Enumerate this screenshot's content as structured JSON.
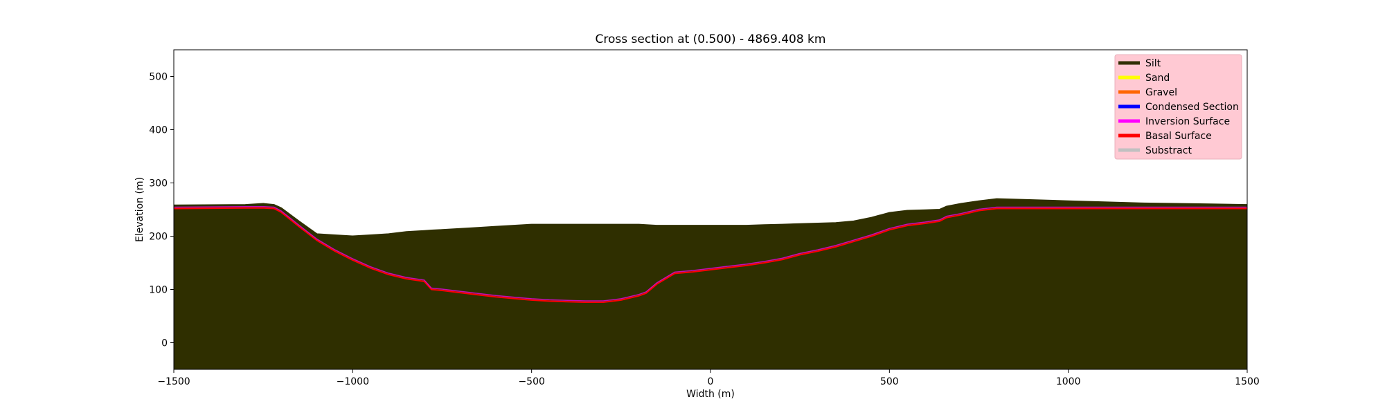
{
  "chart_data": {
    "type": "area",
    "title": "Cross section at (0.500) - 4869.408 km",
    "xlabel": "Width (m)",
    "ylabel": "Elevation (m)",
    "xlim": [
      -1500,
      1500
    ],
    "ylim": [
      -50,
      550
    ],
    "x_ticks": [
      -1500,
      -1000,
      -500,
      0,
      500,
      1000,
      1500
    ],
    "x_tick_labels": [
      "−1500",
      "−1000",
      "−500",
      "0",
      "500",
      "1000",
      "1500"
    ],
    "y_ticks": [
      0,
      100,
      200,
      300,
      400,
      500
    ],
    "y_tick_labels": [
      "0",
      "100",
      "200",
      "300",
      "400",
      "500"
    ],
    "grid": false,
    "legend_position": "top-right",
    "legend_background": "#ffc9d3",
    "legend": [
      {
        "name": "Silt",
        "color": "#2f2f00"
      },
      {
        "name": "Sand",
        "color": "#ffff00"
      },
      {
        "name": "Gravel",
        "color": "#ff6600"
      },
      {
        "name": "Condensed Section",
        "color": "#0000ff"
      },
      {
        "name": "Inversion Surface",
        "color": "#ff00ff"
      },
      {
        "name": "Basal Surface",
        "color": "#ff0000"
      },
      {
        "name": "Substract",
        "color": "#c0c0c0"
      }
    ],
    "x": [
      -1500,
      -1300,
      -1250,
      -1220,
      -1200,
      -1150,
      -1100,
      -1050,
      -1000,
      -950,
      -900,
      -850,
      -800,
      -780,
      -750,
      -700,
      -650,
      -600,
      -550,
      -500,
      -450,
      -400,
      -350,
      -300,
      -250,
      -200,
      -180,
      -150,
      -100,
      -50,
      0,
      50,
      100,
      150,
      200,
      250,
      300,
      350,
      400,
      450,
      500,
      550,
      600,
      640,
      660,
      700,
      750,
      800,
      850,
      900,
      1000,
      1100,
      1200,
      1300,
      1400,
      1500
    ],
    "series": [
      {
        "name": "Substract",
        "color": "#c0c0c0",
        "values": [
          252,
          253,
          253,
          252,
          245,
          218,
          192,
          172,
          155,
          140,
          128,
          120,
          115,
          100,
          98,
          94,
          90,
          86,
          83,
          80,
          78,
          77,
          76,
          76,
          80,
          88,
          93,
          110,
          130,
          133,
          137,
          141,
          145,
          150,
          156,
          165,
          172,
          180,
          190,
          200,
          212,
          220,
          224,
          228,
          235,
          240,
          248,
          252,
          252,
          252,
          252,
          252,
          252,
          252,
          252,
          252
        ]
      },
      {
        "name": "Gravel",
        "color": "#ff6600",
        "values": [
          252,
          253,
          253,
          252,
          245,
          218,
          192,
          172,
          155,
          140,
          128,
          120,
          115,
          102,
          100,
          96,
          92,
          89,
          86,
          83,
          82,
          82,
          82,
          82,
          85,
          92,
          97,
          115,
          133,
          137,
          141,
          144,
          147,
          152,
          158,
          167,
          174,
          182,
          192,
          202,
          214,
          222,
          226,
          230,
          237,
          242,
          250,
          253,
          253,
          253,
          253,
          253,
          253,
          253,
          253,
          253
        ]
      },
      {
        "name": "Sand",
        "color": "#ffff00",
        "values": [
          253,
          254,
          254,
          253,
          246,
          219,
          193,
          173,
          156,
          141,
          130,
          122,
          117,
          106,
          104,
          100,
          96,
          93,
          91,
          88,
          87,
          87,
          87,
          87,
          90,
          97,
          102,
          120,
          140,
          142,
          144,
          147,
          150,
          155,
          161,
          170,
          177,
          186,
          196,
          206,
          218,
          225,
          229,
          233,
          240,
          245,
          252,
          256,
          256,
          255,
          255,
          254,
          254,
          254,
          254,
          254
        ]
      },
      {
        "name": "Silt",
        "color": "#2f2f00",
        "values": [
          256,
          257,
          257,
          255,
          248,
          222,
          196,
          176,
          160,
          146,
          136,
          128,
          122,
          112,
          110,
          108,
          105,
          103,
          101,
          99,
          98,
          98,
          97,
          96,
          100,
          106,
          112,
          130,
          146,
          148,
          148,
          150,
          153,
          158,
          164,
          174,
          181,
          190,
          200,
          210,
          222,
          229,
          232,
          236,
          243,
          249,
          257,
          261,
          260,
          258,
          257,
          257,
          256,
          256,
          256,
          256
        ]
      },
      {
        "name": "Gravel",
        "color": "#ff6600",
        "values": [
          256,
          257,
          257,
          255,
          248,
          222,
          196,
          176,
          160,
          148,
          140,
          134,
          130,
          122,
          120,
          118,
          116,
          115,
          114,
          114,
          115,
          116,
          118,
          120,
          122,
          126,
          130,
          142,
          154,
          156,
          156,
          158,
          160,
          164,
          170,
          180,
          186,
          195,
          204,
          214,
          225,
          232,
          235,
          239,
          246,
          251,
          258,
          262,
          261,
          259,
          258,
          258,
          257,
          257,
          257,
          256
        ]
      },
      {
        "name": "Sand",
        "color": "#ffff00",
        "values": [
          256,
          257,
          257,
          255,
          248,
          222,
          196,
          176,
          162,
          152,
          145,
          140,
          137,
          132,
          131,
          130,
          130,
          130,
          131,
          132,
          136,
          140,
          144,
          146,
          148,
          150,
          152,
          156,
          160,
          161,
          160,
          160,
          161,
          164,
          170,
          180,
          186,
          195,
          204,
          214,
          225,
          232,
          235,
          239,
          246,
          251,
          258,
          262,
          261,
          259,
          258,
          258,
          257,
          257,
          257,
          256
        ]
      },
      {
        "name": "Silt",
        "color": "#2f2f00",
        "values": [
          258,
          259,
          260,
          258,
          252,
          226,
          200,
          180,
          168,
          158,
          152,
          148,
          148,
          146,
          146,
          148,
          150,
          152,
          155,
          158,
          163,
          168,
          172,
          176,
          178,
          178,
          178,
          170,
          168,
          167,
          166,
          166,
          168,
          172,
          178,
          186,
          192,
          200,
          208,
          218,
          229,
          236,
          239,
          243,
          250,
          255,
          262,
          266,
          265,
          263,
          262,
          261,
          260,
          259,
          258,
          258
        ]
      },
      {
        "name": "Gravel",
        "color": "#ff6600",
        "values": [
          258,
          259,
          260,
          258,
          252,
          226,
          200,
          184,
          175,
          168,
          164,
          163,
          163,
          163,
          164,
          166,
          168,
          170,
          172,
          174,
          178,
          181,
          184,
          186,
          188,
          188,
          188,
          184,
          180,
          179,
          178,
          178,
          180,
          184,
          190,
          196,
          202,
          208,
          215,
          223,
          233,
          239,
          242,
          246,
          252,
          257,
          264,
          267,
          266,
          264,
          263,
          262,
          261,
          260,
          259,
          259
        ]
      },
      {
        "name": "Sand",
        "color": "#ffff00",
        "values": [
          258,
          259,
          260,
          258,
          252,
          226,
          202,
          192,
          185,
          182,
          180,
          180,
          181,
          182,
          183,
          185,
          188,
          190,
          192,
          194,
          196,
          198,
          200,
          200,
          200,
          200,
          200,
          200,
          200,
          199,
          199,
          199,
          199,
          201,
          203,
          206,
          209,
          213,
          219,
          227,
          236,
          242,
          244,
          248,
          254,
          259,
          265,
          268,
          267,
          265,
          264,
          263,
          262,
          261,
          260,
          259
        ]
      },
      {
        "name": "Silt",
        "color": "#2f2f00",
        "values": [
          258,
          259,
          261,
          259,
          253,
          228,
          204,
          202,
          200,
          202,
          204,
          208,
          210,
          211,
          212,
          214,
          216,
          218,
          220,
          222,
          222,
          222,
          222,
          222,
          222,
          222,
          221,
          220,
          220,
          220,
          220,
          220,
          220,
          221,
          222,
          223,
          224,
          225,
          228,
          235,
          244,
          248,
          249,
          250,
          256,
          261,
          266,
          270,
          269,
          268,
          266,
          264,
          262,
          261,
          260,
          259
        ]
      }
    ]
  }
}
